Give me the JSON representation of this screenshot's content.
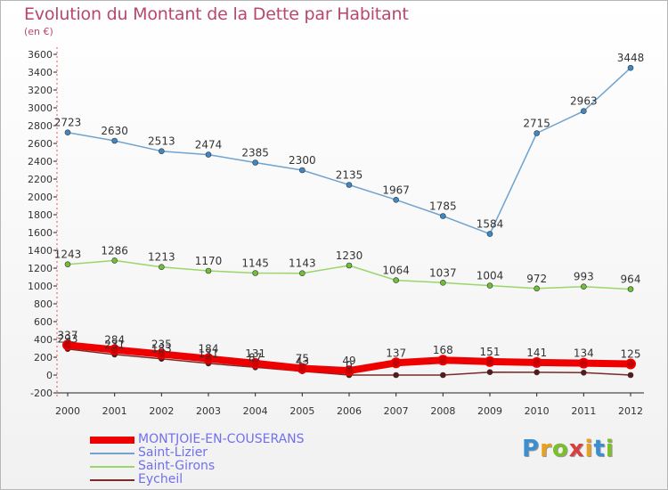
{
  "title": "Evolution du Montant de la Dette par Habitant",
  "unit": "(en €)",
  "logo": {
    "text": "Proxiti",
    "letter_colors": [
      "#3a8fd0",
      "#e8a020",
      "#7bbf2a",
      "#d84040",
      "#e8a020",
      "#3a8fd0",
      "#7bbf2a"
    ]
  },
  "chart_data": {
    "type": "line",
    "categories": [
      "2000",
      "2001",
      "2002",
      "2003",
      "2004",
      "2005",
      "2006",
      "2007",
      "2008",
      "2009",
      "2010",
      "2011",
      "2012"
    ],
    "ylim": [
      -200,
      3600
    ],
    "yticks": [
      -200,
      0,
      200,
      400,
      600,
      800,
      1000,
      1200,
      1400,
      1600,
      1800,
      2000,
      2200,
      2400,
      2600,
      2800,
      3000,
      3200,
      3400,
      3600
    ],
    "grid": false,
    "legend_position": "bottom-left",
    "series": [
      {
        "name": "Saint-Lizier",
        "color": "#6fa3d0",
        "marker_color": "#3f88c5",
        "values": [
          2723,
          2630,
          2513,
          2474,
          2385,
          2300,
          2135,
          1967,
          1785,
          1584,
          2715,
          2963,
          3448
        ],
        "labels": [
          "2723",
          "2630",
          "2513",
          "2474",
          "2385",
          "2300",
          "2135",
          "1967",
          "1785",
          "1584",
          "2715",
          "2963",
          "3448"
        ]
      },
      {
        "name": "Saint-Girons",
        "color": "#9ad66a",
        "marker_color": "#6fbf38",
        "values": [
          1243,
          1286,
          1213,
          1170,
          1145,
          1143,
          1230,
          1064,
          1037,
          1004,
          972,
          993,
          964
        ],
        "labels": [
          "1243",
          "1286",
          "1213",
          "1170",
          "1145",
          "1143",
          "1230",
          "1064",
          "1037",
          "1004",
          "972",
          "993",
          "964"
        ]
      },
      {
        "name": "Eycheil",
        "color": "#7a2a2a",
        "marker_color": "#5a1818",
        "values": [
          293,
          231,
          183,
          131,
          87,
          43,
          0,
          0,
          0,
          33,
          31,
          27,
          0
        ],
        "labels": [
          "293",
          "231",
          "183",
          "131",
          "87",
          "43",
          "0",
          "",
          "",
          "",
          "",
          "",
          ""
        ]
      },
      {
        "name": "MONTJOIE-EN-COUSERANS",
        "color": "#ee0000",
        "marker_color": "#c80000",
        "values": [
          337,
          284,
          235,
          184,
          131,
          75,
          49,
          137,
          168,
          151,
          141,
          134,
          125
        ],
        "labels": [
          "337",
          "284",
          "235",
          "184",
          "131",
          "75",
          "49",
          "137",
          "168",
          "151",
          "141",
          "134",
          "125"
        ]
      }
    ]
  },
  "legend": [
    {
      "label": "MONTJOIE-EN-COUSERANS",
      "color": "#ee0000",
      "thick": true
    },
    {
      "label": "Saint-Lizier",
      "color": "#6fa3d0",
      "thick": false
    },
    {
      "label": "Saint-Girons",
      "color": "#9ad66a",
      "thick": false
    },
    {
      "label": "Eycheil",
      "color": "#7a2a2a",
      "thick": false
    }
  ]
}
